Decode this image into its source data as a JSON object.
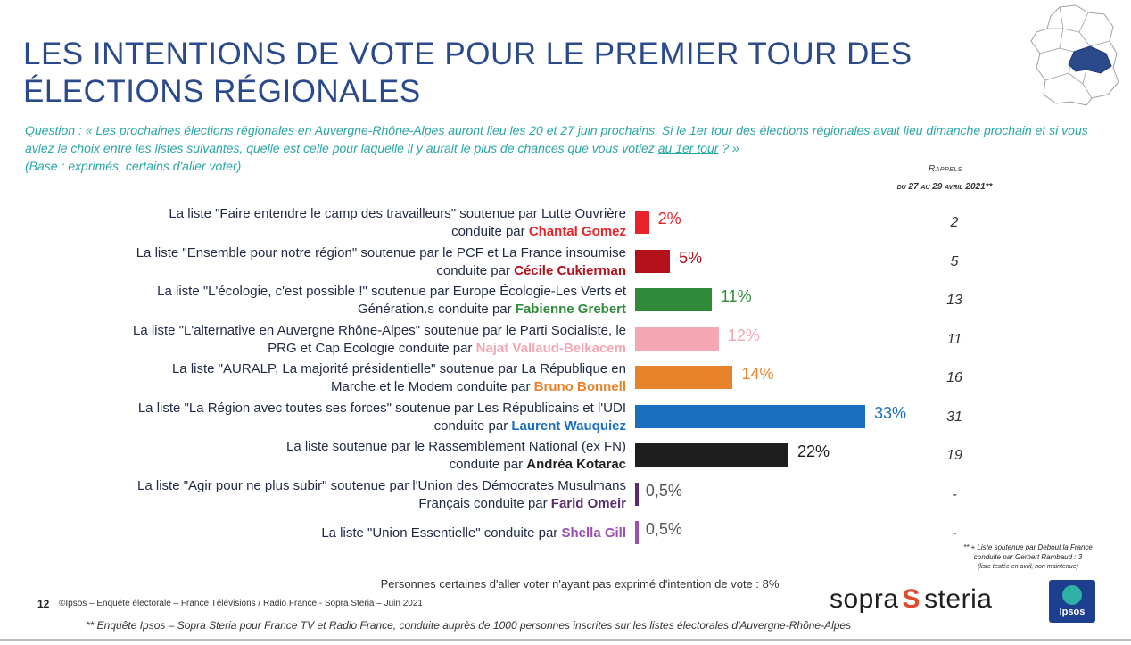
{
  "header": {
    "title": "LES INTENTIONS DE VOTE POUR LE PREMIER TOUR DES ÉLECTIONS RÉGIONALES",
    "question_main": "Question : « Les prochaines élections régionales en Auvergne-Rhône-Alpes auront lieu les 20 et 27 juin prochains. Si le 1er tour des élections régionales avait lieu dimanche prochain et si vous aviez le choix entre les listes suivantes, quelle est celle pour laquelle il y aurait le plus de chances que vous votiez ",
    "question_underlined": "au 1er tour",
    "question_end": " ? »",
    "base": "(Base : exprimés, certains d'aller voter)"
  },
  "rappels": {
    "line1": "Rappels",
    "line2": "du 27 au 29 avril 2021**"
  },
  "colors": {
    "title": "#2a4a8c",
    "question": "#2aa6a6",
    "map_region": "#2a4a8c"
  },
  "chart_data": {
    "type": "bar",
    "orientation": "horizontal",
    "unit": "%",
    "categories": [
      "Chantal Gomez",
      "Cécile Cukierman",
      "Fabienne Grebert",
      "Najat Vallaud-Belkacem",
      "Bruno Bonnell",
      "Laurent Wauquiez",
      "Andréa Kotarac",
      "Farid Omeir",
      "Shella Gill"
    ],
    "values": [
      2,
      5,
      11,
      12,
      14,
      33,
      22,
      0.5,
      0.5
    ],
    "value_labels": [
      "2%",
      "5%",
      "11%",
      "12%",
      "14%",
      "33%",
      "22%",
      "0,5%",
      "0,5%"
    ],
    "recall_values": [
      "2",
      "5",
      "13",
      "11",
      "16",
      "31",
      "19",
      "-",
      "-"
    ],
    "xlim": [
      0,
      33
    ],
    "rows": [
      {
        "text": "La liste \"Faire entendre le camp des travailleurs\" soutenue par Lutte Ouvrière",
        "text2": "conduite par ",
        "candidate": "Chantal Gomez",
        "color": "#e8232a"
      },
      {
        "text": "La liste \"Ensemble pour notre région\" soutenue par le PCF et La France insoumise",
        "text2": "conduite par ",
        "candidate": "Cécile Cukierman",
        "color": "#b3101a"
      },
      {
        "text": "La liste \"L'écologie, c'est possible !\" soutenue par Europe Écologie-Les Verts et",
        "text2": "Génération.s conduite par ",
        "candidate": "Fabienne Grebert",
        "color": "#2f8a3a"
      },
      {
        "text": "La liste \"L'alternative en Auvergne Rhône-Alpes\" soutenue par le Parti Socialiste, le",
        "text2": "PRG et Cap Ecologie conduite par ",
        "candidate": "Najat Vallaud-Belkacem",
        "color": "#f4a6b2"
      },
      {
        "text": "La liste \"AURALP, La majorité présidentielle\" soutenue par La République en",
        "text2": "Marche et le Modem conduite par ",
        "candidate": "Bruno Bonnell",
        "color": "#e8822a"
      },
      {
        "text": "La liste \"La Région avec toutes ses forces\" soutenue par Les Républicains et l'UDI",
        "text2": "conduite par ",
        "candidate": "Laurent Wauquiez",
        "color": "#1a6fc0"
      },
      {
        "text": "La liste soutenue par le Rassemblement National (ex FN)",
        "text2": "conduite par ",
        "candidate": "Andréa  Kotarac",
        "color": "#1e1e1e"
      },
      {
        "text": "La liste \"Agir pour ne plus subir\" soutenue par l'Union des Démocrates Musulmans",
        "text2": "Français conduite par ",
        "candidate": "Farid Omeir",
        "color": "#5a2a6e"
      },
      {
        "text": "",
        "text2": "La liste \"Union Essentielle\" conduite par ",
        "candidate": "Shella Gill",
        "color": "#9b4fb0"
      }
    ]
  },
  "footnote_right": {
    "line1": "** + Liste soutenue par Debout la France",
    "line2": "conduite par Gerbert Rambaud : 3",
    "line3": "(liste testée en avril, non maintenue)"
  },
  "note_center": "Personnes certaines d'aller voter n'ayant pas exprimé d'intention de vote : 8%",
  "footer": {
    "page": "12",
    "credits": "©Ipsos – Enquête électorale – France Télévisions / Radio France  - Sopra Steria – Juin 2021",
    "survey_note": "** Enquête Ipsos – Sopra Steria pour  France TV et Radio France, conduite auprès de 1000 personnes inscrites sur les listes électorales d'Auvergne-Rhône-Alpes",
    "sopra_left": "sopra",
    "sopra_right": "steria",
    "ipsos": "Ipsos"
  }
}
